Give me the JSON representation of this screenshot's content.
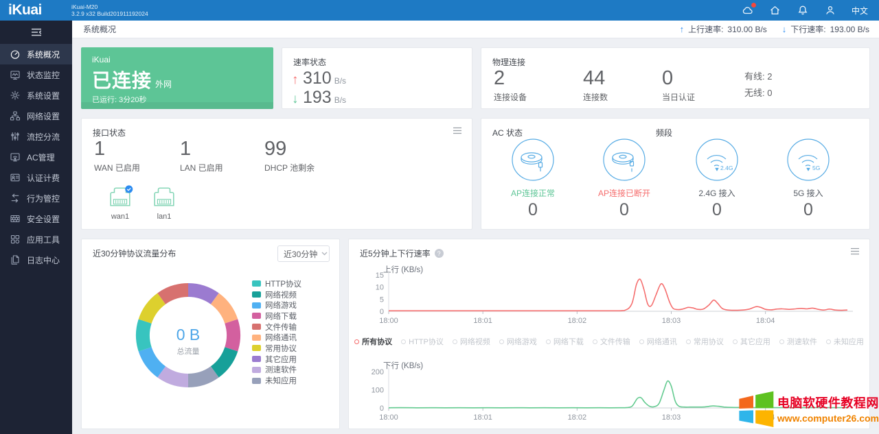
{
  "header": {
    "logo": "iKuai",
    "model": "iKuai-M20",
    "build": "3.2.9 x32 Build201911192024",
    "language": "中文",
    "icons": [
      "cloud-icon",
      "home-icon",
      "bell-icon",
      "user-icon"
    ],
    "notification_dot_color": "#f5483d",
    "bar_color": "#1e7ac4"
  },
  "breadcrumb": {
    "title": "系统概况",
    "upload_label": "上行速率:",
    "upload_value": "310.00 B/s",
    "download_label": "下行速率:",
    "download_value": "193.00 B/s",
    "arrow_color": "#2d8cf0"
  },
  "sidebar": {
    "items": [
      {
        "label": "系统概况",
        "icon": "dashboard-icon",
        "active": true
      },
      {
        "label": "状态监控",
        "icon": "monitor-icon",
        "active": false
      },
      {
        "label": "系统设置",
        "icon": "gear-icon",
        "active": false
      },
      {
        "label": "网络设置",
        "icon": "network-icon",
        "active": false
      },
      {
        "label": "流控分流",
        "icon": "sliders-icon",
        "active": false
      },
      {
        "label": "AC管理",
        "icon": "ac-screen-icon",
        "active": false
      },
      {
        "label": "认证计费",
        "icon": "idcard-icon",
        "active": false
      },
      {
        "label": "行为管控",
        "icon": "behavior-icon",
        "active": false
      },
      {
        "label": "安全设置",
        "icon": "firewall-icon",
        "active": false
      },
      {
        "label": "应用工具",
        "icon": "tools-icon",
        "active": false
      },
      {
        "label": "日志中心",
        "icon": "logs-icon",
        "active": false
      }
    ]
  },
  "cards": {
    "connection": {
      "brand": "iKuai",
      "status": "已连接",
      "network": "外网",
      "uptime": "已运行: 3分20秒",
      "bg_color": "#5dc596"
    },
    "rate": {
      "title": "速率状态",
      "up_value": "310",
      "up_unit": "B/s",
      "down_value": "193",
      "down_unit": "B/s",
      "up_color": "#f56c6c",
      "down_color": "#5dc596"
    },
    "physical": {
      "title": "物理连接",
      "stats": [
        {
          "value": "2",
          "label": "连接设备"
        },
        {
          "value": "44",
          "label": "连接数"
        },
        {
          "value": "0",
          "label": "当日认证"
        }
      ],
      "wired": "有线: 2",
      "wireless": "无线: 0"
    },
    "interface": {
      "title": "接口状态",
      "stats": [
        {
          "value": "1",
          "label": "WAN 已启用"
        },
        {
          "value": "1",
          "label": "LAN 已启用"
        },
        {
          "value": "99",
          "label": "DHCP 池剩余"
        }
      ],
      "ports": [
        {
          "name": "wan1",
          "badge": true
        },
        {
          "name": "lan1",
          "badge": false
        }
      ],
      "port_color": "#7ed3b2",
      "badge_color": "#2d8cf0"
    },
    "ac": {
      "title": "AC 状态",
      "band_title": "频段",
      "icon_color": "#56abe4",
      "items": [
        {
          "icon": "ap-connected-icon",
          "label": "AP连接正常",
          "status": "ok",
          "value": "0"
        },
        {
          "icon": "ap-disconnected-icon",
          "label": "AP连接已断开",
          "status": "err",
          "value": "0"
        },
        {
          "icon": "wifi-24g-icon",
          "label": "2.4G 接入",
          "status": "plain",
          "value": "0",
          "band": "2.4G"
        },
        {
          "icon": "wifi-5g-icon",
          "label": "5G 接入",
          "status": "plain",
          "value": "0",
          "band": "5G"
        }
      ]
    },
    "pie": {
      "title": "近30分钟协议流量分布",
      "range_selector": "近30分钟"
    },
    "lines": {
      "title": "近5分钟上下行速率",
      "legend_active": "所有协议",
      "legend_inactive": [
        "HTTP协议",
        "网络视频",
        "网络游戏",
        "网络下载",
        "文件传输",
        "网络通讯",
        "常用协议",
        "其它应用",
        "测速软件",
        "未知应用"
      ]
    }
  },
  "watermark": {
    "line1": "电脑软硬件教程网",
    "line2": "www.computer26.com",
    "line1_color": "#e60023",
    "line2_color": "#f08300",
    "flag_colors": [
      "#f3681d",
      "#5ec221",
      "#2fb5ea",
      "#fdb400"
    ]
  },
  "chart_data": [
    {
      "id": "protocol-distribution",
      "type": "pie",
      "title": "近30分钟协议流量分布",
      "center_value": "0 B",
      "center_label": "总流量",
      "center_value_color": "#4da6e8",
      "legend_position": "right",
      "segments": [
        {
          "label": "HTTP协议",
          "color": "#38c4bf",
          "value": 0
        },
        {
          "label": "网络视频",
          "color": "#17a099",
          "value": 0
        },
        {
          "label": "网络游戏",
          "color": "#4fb0f2",
          "value": 0
        },
        {
          "label": "网络下载",
          "color": "#d3609f",
          "value": 0
        },
        {
          "label": "文件传输",
          "color": "#d7716f",
          "value": 0
        },
        {
          "label": "网络通讯",
          "color": "#ffb27e",
          "value": 0
        },
        {
          "label": "常用协议",
          "color": "#ddd02e",
          "value": 0
        },
        {
          "label": "其它应用",
          "color": "#9b7bd0",
          "value": 0
        },
        {
          "label": "测速软件",
          "color": "#c0abdf",
          "value": 0
        },
        {
          "label": "未知应用",
          "color": "#97a0ba",
          "value": 0
        }
      ],
      "display_order_clockwise_from_top": [
        "其它应用",
        "网络通讯",
        "网络下载",
        "网络视频",
        "未知应用",
        "测速软件",
        "网络游戏",
        "HTTP协议",
        "常用协议",
        "文件传输"
      ]
    },
    {
      "id": "upload-rate",
      "type": "line",
      "ylabel": "上行 (KB/s)",
      "yticks": [
        0,
        5,
        10,
        15
      ],
      "ylim": [
        0,
        15
      ],
      "xticks": [
        "18:00",
        "18:01",
        "18:02",
        "18:03",
        "18:04"
      ],
      "xlim": [
        0,
        4.87
      ],
      "color": "#f56e6e",
      "points": [
        [
          0,
          0.2
        ],
        [
          0.3,
          0.2
        ],
        [
          0.6,
          0.2
        ],
        [
          0.9,
          0.2
        ],
        [
          1.2,
          0.2
        ],
        [
          1.5,
          0.2
        ],
        [
          1.8,
          0.2
        ],
        [
          2.1,
          0.2
        ],
        [
          2.35,
          0.2
        ],
        [
          2.5,
          0.3
        ],
        [
          2.58,
          3
        ],
        [
          2.63,
          11
        ],
        [
          2.67,
          13.2
        ],
        [
          2.71,
          9
        ],
        [
          2.75,
          3
        ],
        [
          2.79,
          2.4
        ],
        [
          2.84,
          7
        ],
        [
          2.89,
          11.3
        ],
        [
          2.93,
          9.5
        ],
        [
          2.98,
          4
        ],
        [
          3.02,
          1.2
        ],
        [
          3.07,
          0.7
        ],
        [
          3.12,
          0.9
        ],
        [
          3.18,
          1.6
        ],
        [
          3.23,
          1.4
        ],
        [
          3.28,
          0.8
        ],
        [
          3.34,
          0.9
        ],
        [
          3.4,
          2.6
        ],
        [
          3.45,
          4.6
        ],
        [
          3.49,
          3.4
        ],
        [
          3.54,
          1.2
        ],
        [
          3.6,
          0.5
        ],
        [
          3.68,
          0.4
        ],
        [
          3.76,
          0.5
        ],
        [
          3.83,
          0.9
        ],
        [
          3.9,
          1.9
        ],
        [
          3.95,
          1.6
        ],
        [
          4.0,
          0.8
        ],
        [
          4.06,
          0.6
        ],
        [
          4.12,
          0.9
        ],
        [
          4.18,
          1.0
        ],
        [
          4.25,
          0.8
        ],
        [
          4.32,
          1.0
        ],
        [
          4.38,
          1.2
        ],
        [
          4.44,
          1.0
        ],
        [
          4.5,
          1.3
        ],
        [
          4.56,
          0.8
        ],
        [
          4.62,
          0.5
        ],
        [
          4.68,
          0.9
        ],
        [
          4.74,
          0.5
        ],
        [
          4.8,
          0.4
        ],
        [
          4.87,
          0.5
        ]
      ]
    },
    {
      "id": "download-rate",
      "type": "line",
      "ylabel": "下行 (KB/s)",
      "yticks": [
        0,
        100,
        200
      ],
      "ylim": [
        0,
        200
      ],
      "xticks": [
        "18:00",
        "18:01",
        "18:02",
        "18:03",
        "18:04"
      ],
      "xlim": [
        0,
        4.87
      ],
      "color": "#62ca8f",
      "points": [
        [
          0,
          0.8
        ],
        [
          0.3,
          0.8
        ],
        [
          0.6,
          0.8
        ],
        [
          0.9,
          0.8
        ],
        [
          1.2,
          0.8
        ],
        [
          1.5,
          0.8
        ],
        [
          1.8,
          0.8
        ],
        [
          2.1,
          0.8
        ],
        [
          2.35,
          0.8
        ],
        [
          2.5,
          1
        ],
        [
          2.58,
          8
        ],
        [
          2.64,
          52
        ],
        [
          2.68,
          56
        ],
        [
          2.72,
          30
        ],
        [
          2.77,
          9
        ],
        [
          2.82,
          7
        ],
        [
          2.87,
          25
        ],
        [
          2.92,
          95
        ],
        [
          2.96,
          148
        ],
        [
          3.0,
          120
        ],
        [
          3.04,
          40
        ],
        [
          3.08,
          10
        ],
        [
          3.14,
          5
        ],
        [
          3.2,
          5
        ],
        [
          3.28,
          5
        ],
        [
          3.36,
          6
        ],
        [
          3.44,
          11
        ],
        [
          3.5,
          9
        ],
        [
          3.56,
          5
        ],
        [
          3.64,
          3
        ],
        [
          3.75,
          2.5
        ],
        [
          3.9,
          2
        ],
        [
          4.1,
          2
        ],
        [
          4.3,
          2
        ],
        [
          4.5,
          2
        ],
        [
          4.7,
          2
        ],
        [
          4.87,
          2
        ]
      ]
    }
  ]
}
